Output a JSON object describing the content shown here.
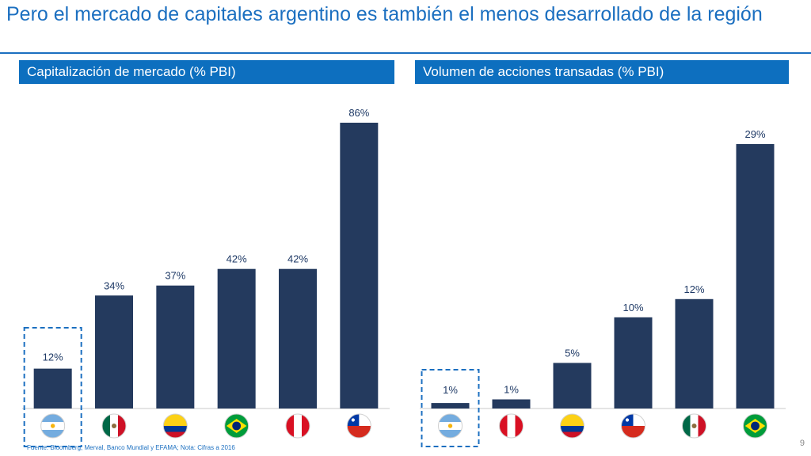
{
  "slide": {
    "title": "Pero el mercado de capitales argentino es también el menos desarrollado de la región",
    "source": "Fuente: Bloomberg, Merval, Banco Mundial y EFAMA; Nota: Cifras a 2016",
    "page_number": "9"
  },
  "colors": {
    "bar": "#243a5e",
    "label": "#1f3a66",
    "accent": "#1b6fc0",
    "highlight_box": "#1b6fc0"
  },
  "chart_data": [
    {
      "type": "bar",
      "title": "Capitalización de mercado (% PBI)",
      "categories": [
        "Argentina",
        "México",
        "Colombia",
        "Brasil",
        "Perú",
        "Chile"
      ],
      "flag_icons": [
        "argentina-flag-icon",
        "mexico-flag-icon",
        "colombia-flag-icon",
        "brazil-flag-icon",
        "peru-flag-icon",
        "chile-flag-icon"
      ],
      "values": [
        12,
        34,
        37,
        42,
        42,
        86
      ],
      "value_labels": [
        "12%",
        "34%",
        "37%",
        "42%",
        "42%",
        "86%"
      ],
      "highlighted": "Argentina",
      "ylim": [
        0,
        86
      ],
      "grid": false
    },
    {
      "type": "bar",
      "title": "Volumen de acciones transadas (% PBI)",
      "categories": [
        "Argentina",
        "Perú",
        "Colombia",
        "Chile",
        "México",
        "Brasil"
      ],
      "flag_icons": [
        "argentina-flag-icon",
        "peru-flag-icon",
        "colombia-flag-icon",
        "chile-flag-icon",
        "mexico-flag-icon",
        "brazil-flag-icon"
      ],
      "values": [
        0.6,
        1,
        5,
        10,
        12,
        29
      ],
      "value_labels": [
        "1%",
        "1%",
        "5%",
        "10%",
        "12%",
        "29%"
      ],
      "highlighted": "Argentina",
      "ylim": [
        0,
        29
      ],
      "grid": false
    }
  ]
}
